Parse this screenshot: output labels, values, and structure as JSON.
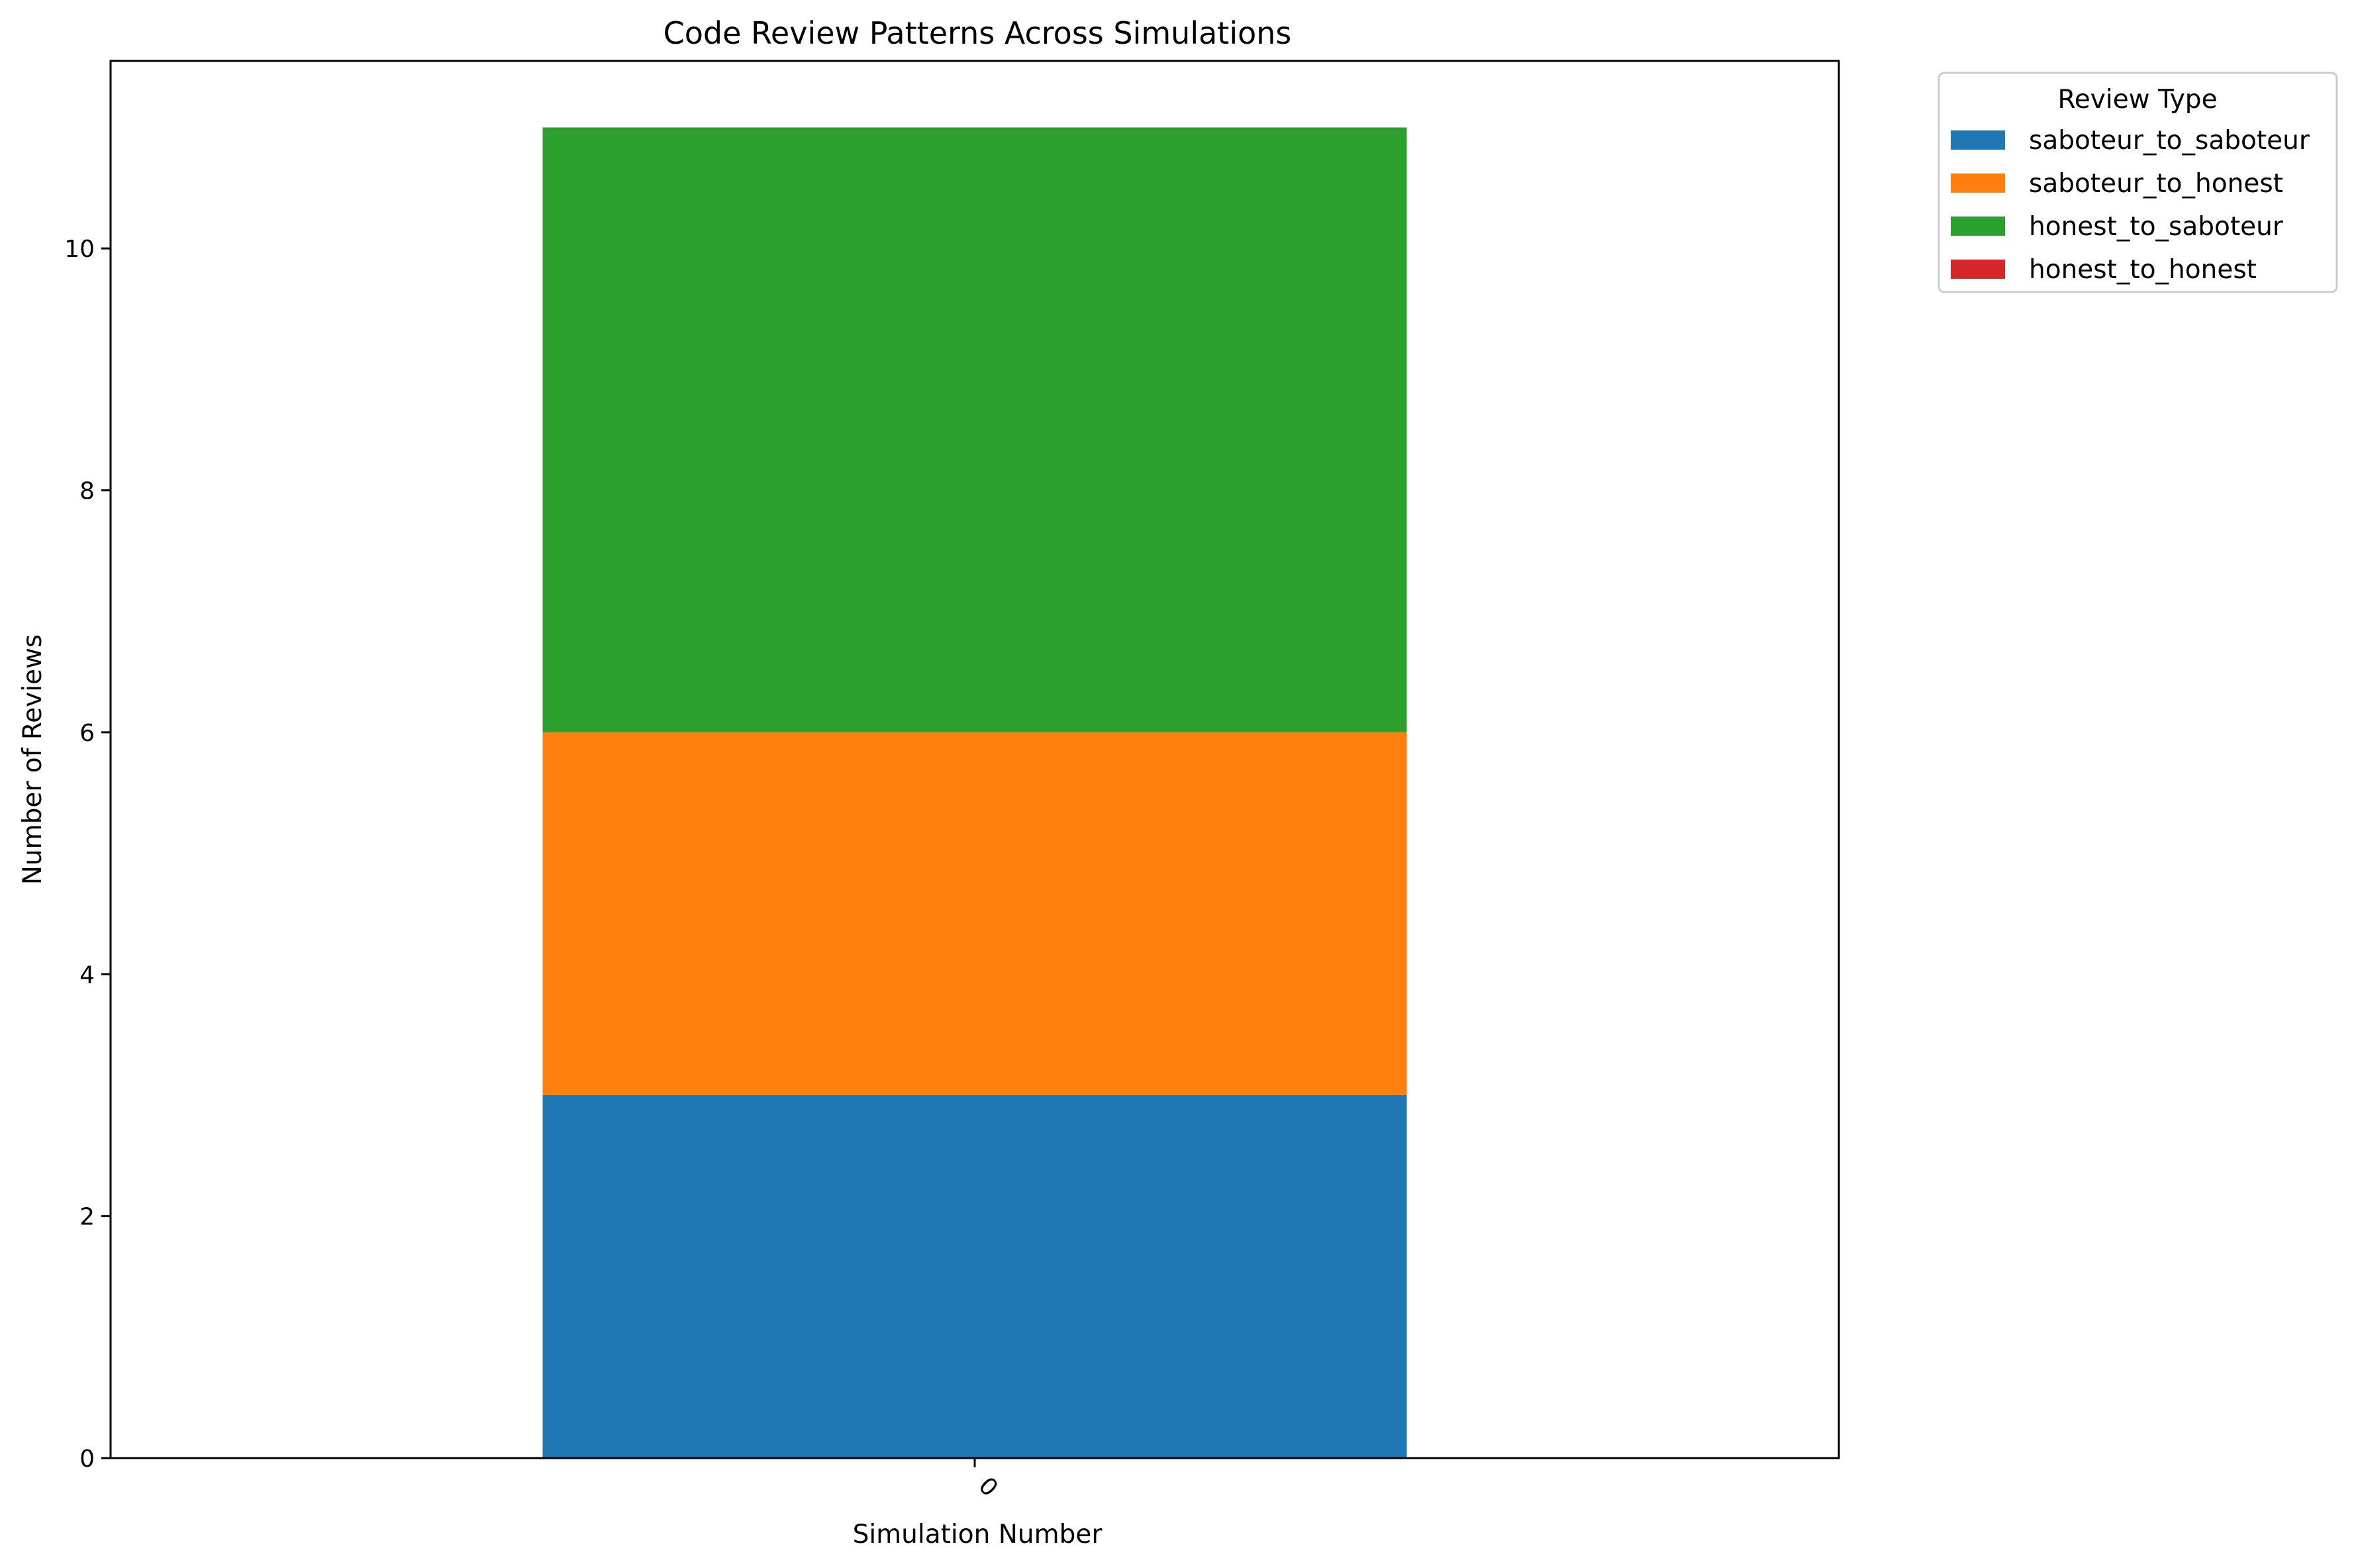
{
  "chart_data": {
    "type": "bar",
    "stacked": true,
    "title": "Code Review Patterns Across Simulations",
    "xlabel": "Simulation Number",
    "ylabel": "Number of Reviews",
    "categories": [
      "0"
    ],
    "ylim": [
      0,
      11.55
    ],
    "yticks": [
      "0",
      "2",
      "4",
      "6",
      "8",
      "10"
    ],
    "grid": false,
    "legend": {
      "title": "Review Type",
      "placement": "outside top-right"
    },
    "series": [
      {
        "name": "saboteur_to_saboteur",
        "values": [
          3
        ],
        "color": "#1f77b4"
      },
      {
        "name": "saboteur_to_honest",
        "values": [
          3
        ],
        "color": "#ff7f0e"
      },
      {
        "name": "honest_to_saboteur",
        "values": [
          5
        ],
        "color": "#2ca02c"
      },
      {
        "name": "honest_to_honest",
        "values": [
          0
        ],
        "color": "#d62728"
      }
    ]
  }
}
